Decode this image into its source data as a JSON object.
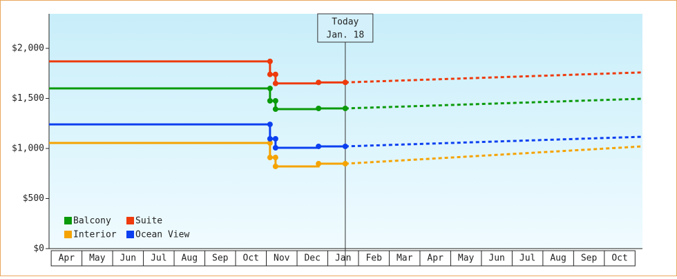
{
  "chart_data": {
    "type": "step-line",
    "categories": [
      "Apr",
      "May",
      "Jun",
      "Jul",
      "Aug",
      "Sep",
      "Oct",
      "Nov",
      "Dec",
      "Jan",
      "Feb",
      "Mar",
      "Apr",
      "May",
      "Jun",
      "Jul",
      "Aug",
      "Sep",
      "Oct"
    ],
    "xlim": [
      -0.07,
      19.24
    ],
    "ylim": [
      0,
      2345
    ],
    "yticks": [
      {
        "value": 0,
        "label": "$0"
      },
      {
        "value": 500,
        "label": "$500"
      },
      {
        "value": 1000,
        "label": "$1,000"
      },
      {
        "value": 1500,
        "label": "$1,500"
      },
      {
        "value": 2000,
        "label": "$2,000"
      }
    ],
    "annotation": {
      "x": 9.57,
      "lines": [
        "Today",
        "Jan. 18"
      ]
    },
    "legend": "lower-left",
    "series": [
      {
        "name": "Balcony",
        "color": "#0a9a0a",
        "x": [
          -0.07,
          7.12,
          7.12,
          7.3,
          7.3,
          8.7,
          9.57
        ],
        "values": [
          1600,
          1600,
          1476,
          1476,
          1393,
          1400,
          1400
        ],
        "forecast": {
          "x": [
            9.57,
            19.24
          ],
          "values": [
            1400,
            1497
          ]
        }
      },
      {
        "name": "Suite",
        "color": "#ee3a0c",
        "x": [
          -0.07,
          7.12,
          7.12,
          7.3,
          7.3,
          8.7,
          9.57
        ],
        "values": [
          1870,
          1870,
          1740,
          1740,
          1650,
          1660,
          1660
        ],
        "forecast": {
          "x": [
            9.57,
            19.24
          ],
          "values": [
            1660,
            1760
          ]
        }
      },
      {
        "name": "Interior",
        "color": "#f5a300",
        "x": [
          -0.07,
          7.12,
          7.12,
          7.3,
          7.3,
          8.7,
          9.57
        ],
        "values": [
          1055,
          1055,
          910,
          910,
          821,
          848,
          848
        ],
        "forecast": {
          "x": [
            9.57,
            19.24
          ],
          "values": [
            848,
            1021
          ]
        }
      },
      {
        "name": "Ocean View",
        "color": "#0b3ff0",
        "x": [
          -0.07,
          7.12,
          7.12,
          7.3,
          7.3,
          8.7,
          9.57
        ],
        "values": [
          1241,
          1241,
          1097,
          1097,
          1007,
          1021,
          1021
        ],
        "forecast": {
          "x": [
            9.57,
            19.24
          ],
          "values": [
            1021,
            1117
          ]
        }
      }
    ]
  }
}
